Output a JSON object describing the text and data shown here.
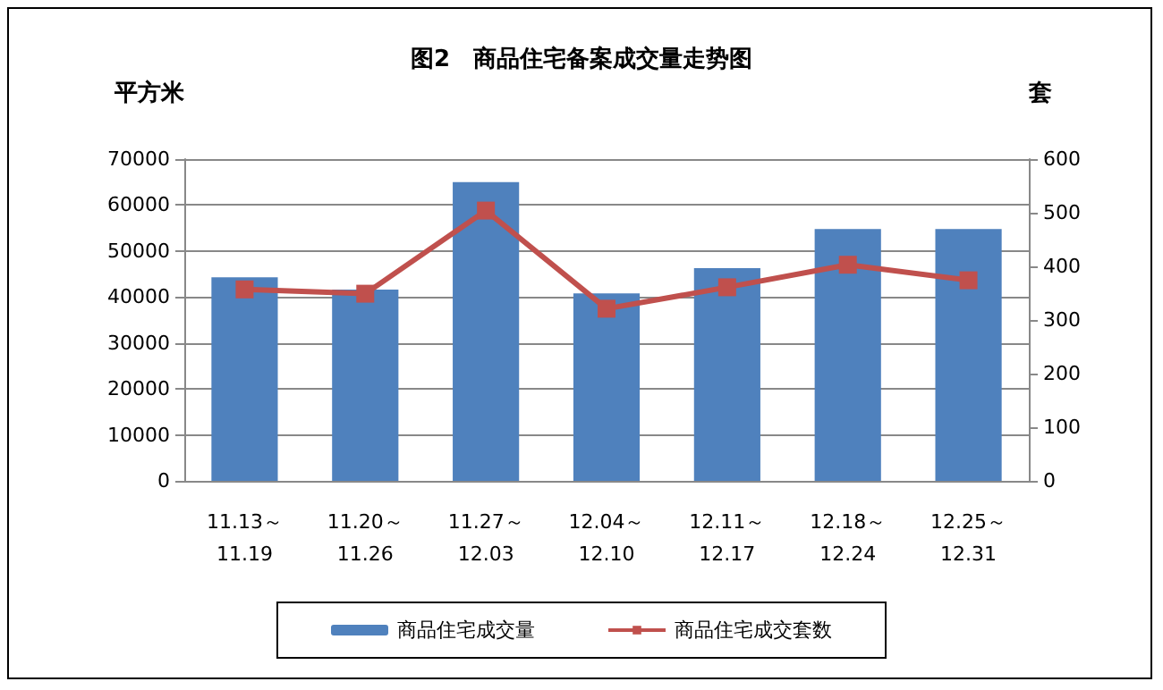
{
  "chart_data": {
    "type": "bar",
    "title": "图2　商品住宅备案成交量走势图",
    "ylabel": "平方米",
    "y2label": "套",
    "categories": [
      "11.13～11.19",
      "11.20～11.26",
      "11.27～12.03",
      "12.04～12.10",
      "12.11～12.17",
      "12.18～12.24",
      "12.25～12.31"
    ],
    "series": [
      {
        "name": "商品住宅成交量",
        "color": "#4f81bd",
        "values": [
          44300,
          41600,
          65000,
          40800,
          46300,
          54800,
          54800
        ]
      },
      {
        "name": "商品住宅成交套数",
        "type": "line",
        "axis": "y2",
        "color": "#c0504d",
        "marker": "square",
        "values": [
          357,
          349,
          504,
          321,
          361,
          403,
          374
        ]
      }
    ],
    "ylim": [
      0,
      70000
    ],
    "yticks": [
      0,
      10000,
      20000,
      30000,
      40000,
      50000,
      60000,
      70000
    ],
    "y2lim": [
      0,
      600
    ],
    "y2ticks": [
      0,
      100,
      200,
      300,
      400,
      500,
      600
    ],
    "grid": "y",
    "legend": "bottom"
  }
}
